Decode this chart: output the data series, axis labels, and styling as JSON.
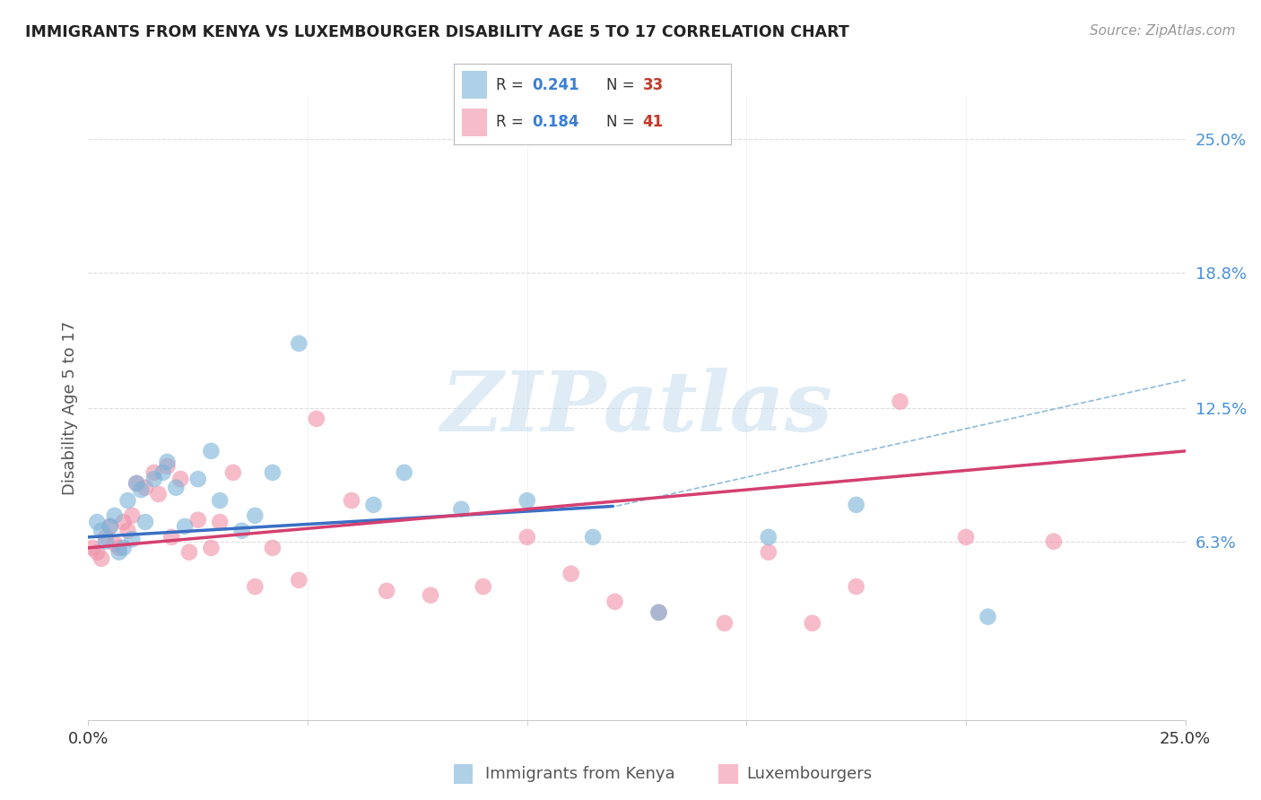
{
  "title": "IMMIGRANTS FROM KENYA VS LUXEMBOURGER DISABILITY AGE 5 TO 17 CORRELATION CHART",
  "source": "Source: ZipAtlas.com",
  "ylabel": "Disability Age 5 to 17",
  "xlim": [
    0.0,
    0.25
  ],
  "ylim": [
    -0.02,
    0.27
  ],
  "xtick_labels": [
    "0.0%",
    "25.0%"
  ],
  "xtick_vals": [
    0.0,
    0.25
  ],
  "right_ytick_labels": [
    "6.3%",
    "12.5%",
    "18.8%",
    "25.0%"
  ],
  "right_ytick_vals": [
    0.063,
    0.125,
    0.188,
    0.25
  ],
  "watermark": "ZIPatlas",
  "kenya_color": "#7ab3d9",
  "kenya_edge": "#5588bb",
  "lux_color": "#f090a8",
  "lux_edge": "#d06080",
  "kenya_R": 0.241,
  "kenya_N": 33,
  "lux_R": 0.184,
  "lux_N": 41,
  "kenya_x": [
    0.002,
    0.003,
    0.004,
    0.005,
    0.006,
    0.007,
    0.008,
    0.009,
    0.01,
    0.011,
    0.012,
    0.013,
    0.015,
    0.017,
    0.018,
    0.02,
    0.022,
    0.025,
    0.028,
    0.03,
    0.035,
    0.038,
    0.042,
    0.048,
    0.065,
    0.072,
    0.085,
    0.1,
    0.115,
    0.13,
    0.155,
    0.175,
    0.205
  ],
  "kenya_y": [
    0.072,
    0.068,
    0.063,
    0.07,
    0.075,
    0.058,
    0.06,
    0.082,
    0.064,
    0.09,
    0.087,
    0.072,
    0.092,
    0.095,
    0.1,
    0.088,
    0.07,
    0.092,
    0.105,
    0.082,
    0.068,
    0.075,
    0.095,
    0.155,
    0.08,
    0.095,
    0.078,
    0.082,
    0.065,
    0.03,
    0.065,
    0.08,
    0.028
  ],
  "lux_x": [
    0.001,
    0.002,
    0.003,
    0.004,
    0.005,
    0.006,
    0.007,
    0.008,
    0.009,
    0.01,
    0.011,
    0.013,
    0.015,
    0.016,
    0.018,
    0.019,
    0.021,
    0.023,
    0.025,
    0.028,
    0.03,
    0.033,
    0.038,
    0.042,
    0.048,
    0.052,
    0.06,
    0.068,
    0.078,
    0.09,
    0.1,
    0.11,
    0.12,
    0.13,
    0.145,
    0.155,
    0.165,
    0.175,
    0.185,
    0.2,
    0.22
  ],
  "lux_y": [
    0.06,
    0.058,
    0.055,
    0.065,
    0.07,
    0.062,
    0.06,
    0.072,
    0.068,
    0.075,
    0.09,
    0.088,
    0.095,
    0.085,
    0.098,
    0.065,
    0.092,
    0.058,
    0.073,
    0.06,
    0.072,
    0.095,
    0.042,
    0.06,
    0.045,
    0.12,
    0.082,
    0.04,
    0.038,
    0.042,
    0.065,
    0.048,
    0.035,
    0.03,
    0.025,
    0.058,
    0.025,
    0.042,
    0.128,
    0.065,
    0.063
  ],
  "bg_color": "#ffffff",
  "grid_color": "#dddddd",
  "title_color": "#222222",
  "axis_label_color": "#555555",
  "legend_R_color": "#3a7fd4",
  "legend_N_color": "#c0392b",
  "right_axis_color": "#4a90d9"
}
